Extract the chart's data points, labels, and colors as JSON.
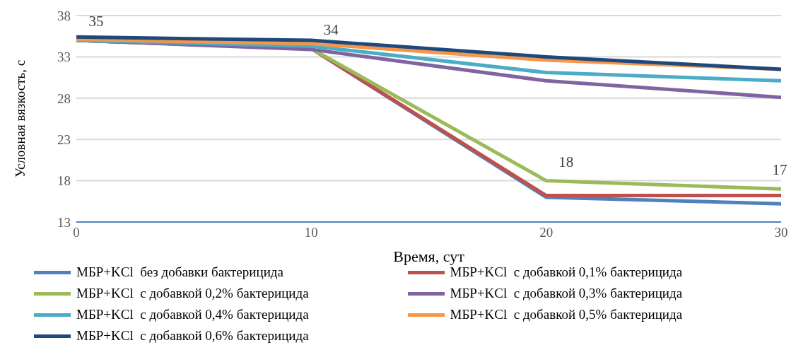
{
  "chart_data": {
    "type": "line",
    "xlabel": "Время, сут",
    "ylabel": "Условная вязкость, с",
    "x": [
      0,
      10,
      20,
      30
    ],
    "xlim": [
      0,
      30
    ],
    "xticks": [
      0,
      10,
      20,
      30
    ],
    "ylim": [
      13,
      38
    ],
    "yticks": [
      13,
      18,
      23,
      28,
      33,
      38
    ],
    "grid": "y",
    "legend": "bottom",
    "marker": "none",
    "line_style": "solid",
    "series": [
      {
        "name": "МБР+KCl  без добавки бактерицида",
        "color": "#4f81bd",
        "values": [
          35,
          34,
          16,
          15.2
        ]
      },
      {
        "name": "МБР+KCl  с добавкой 0,1% бактерицида",
        "color": "#c0504d",
        "values": [
          35,
          34,
          16.2,
          16.2
        ]
      },
      {
        "name": "МБР+KCl  с добавкой 0,2% бактерицида",
        "color": "#9bbb59",
        "values": [
          35,
          34,
          18,
          17
        ],
        "value_labels": [
          "35",
          "34",
          "18",
          "17"
        ]
      },
      {
        "name": "МБР+KCl  с добавкой 0,3% бактерицида",
        "color": "#8064a2",
        "values": [
          35,
          33.9,
          30.1,
          28.1
        ]
      },
      {
        "name": "МБР+KCl  с добавкой 0,4% бактерицида",
        "color": "#4bacc6",
        "values": [
          35,
          34.3,
          31.1,
          30.1
        ]
      },
      {
        "name": "МБР+KCl  с добавкой 0,5% бактерицида",
        "color": "#f79646",
        "values": [
          35.1,
          34.6,
          32.6,
          31.5
        ]
      },
      {
        "name": "МБР+KCl  с добавкой 0,6% бактерицида",
        "color": "#1f497d",
        "values": [
          35.4,
          35,
          33,
          31.5
        ]
      }
    ]
  }
}
